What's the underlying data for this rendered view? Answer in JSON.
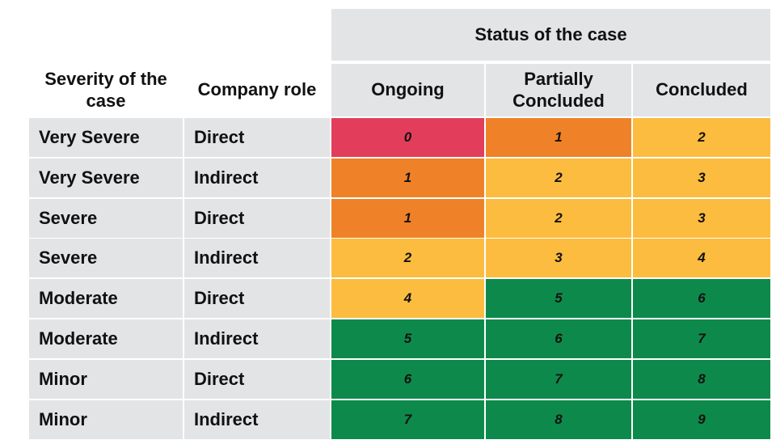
{
  "chart_data": {
    "type": "table",
    "title": "Status of the case",
    "row_headers": [
      "Severity of the case",
      "Company role"
    ],
    "columns": [
      "Ongoing",
      "Partially Concluded",
      "Concluded"
    ],
    "rows": [
      {
        "severity": "Very Severe",
        "role": "Direct",
        "values": [
          0,
          1,
          2
        ]
      },
      {
        "severity": "Very Severe",
        "role": "Indirect",
        "values": [
          1,
          2,
          3
        ]
      },
      {
        "severity": "Severe",
        "role": "Direct",
        "values": [
          1,
          2,
          3
        ]
      },
      {
        "severity": "Severe",
        "role": "Indirect",
        "values": [
          2,
          3,
          4
        ]
      },
      {
        "severity": "Moderate",
        "role": "Direct",
        "values": [
          4,
          5,
          6
        ]
      },
      {
        "severity": "Moderate",
        "role": "Indirect",
        "values": [
          5,
          6,
          7
        ]
      },
      {
        "severity": "Minor",
        "role": "Direct",
        "values": [
          6,
          7,
          8
        ]
      },
      {
        "severity": "Minor",
        "role": "Indirect",
        "values": [
          7,
          8,
          9
        ]
      }
    ],
    "colors": {
      "0": "#e33d5c",
      "1": "#ef8228",
      "2": "#fcbc3f",
      "3": "#fcbc3f",
      "4": "#fcbc3f",
      "5": "#0d8a4b",
      "6": "#0d8a4b",
      "7": "#0d8a4b",
      "8": "#0d8a4b",
      "9": "#0d8a4b"
    },
    "header_background": "#e3e4e6"
  }
}
